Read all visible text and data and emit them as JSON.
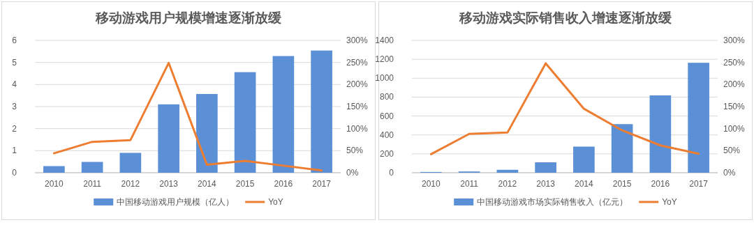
{
  "chart_data": [
    {
      "type": "bar",
      "title": "移动游戏用户规模增速逐渐放缓",
      "categories": [
        "2010",
        "2011",
        "2012",
        "2013",
        "2014",
        "2015",
        "2016",
        "2017"
      ],
      "series": [
        {
          "name": "中国移动游戏用户规模（亿人）",
          "color": "#5b8fd6",
          "values": [
            0.3,
            0.49,
            0.9,
            3.1,
            3.57,
            4.56,
            5.29,
            5.54
          ]
        },
        {
          "name": "YoY",
          "type": "line",
          "axis": "y2",
          "color": "#ed7d31",
          "values": [
            44,
            70,
            74,
            249,
            18,
            27,
            16,
            5
          ]
        }
      ],
      "ylim": [
        0,
        6
      ],
      "yticks": [
        0,
        1,
        2,
        3,
        4,
        5,
        6
      ],
      "y2lim": [
        0,
        300
      ],
      "y2ticks": [
        {
          "value": 0,
          "label": "0%"
        },
        {
          "value": 50,
          "label": "50%"
        },
        {
          "value": 100,
          "label": "100%"
        },
        {
          "value": 150,
          "label": "150%"
        },
        {
          "value": 200,
          "label": "200%"
        },
        {
          "value": 250,
          "label": "250%"
        },
        {
          "value": 300,
          "label": "300%"
        }
      ],
      "grid": "y",
      "legend": "bottom"
    },
    {
      "type": "bar",
      "title": "移动游戏实际销售收入增速逐渐放缓",
      "categories": [
        "2010",
        "2011",
        "2012",
        "2013",
        "2014",
        "2015",
        "2016",
        "2017"
      ],
      "series": [
        {
          "name": "中国移动游戏市场实际销售收入（亿元）",
          "color": "#5b8fd6",
          "values": [
            8,
            13,
            31,
            110,
            276,
            514,
            818,
            1163
          ]
        },
        {
          "name": "YoY",
          "type": "line",
          "axis": "y2",
          "color": "#ed7d31",
          "values": [
            42,
            88,
            91,
            248,
            145,
            96,
            62,
            43
          ]
        }
      ],
      "ylim": [
        0,
        1400
      ],
      "yticks": [
        0,
        200,
        400,
        600,
        800,
        1000,
        1200,
        1400
      ],
      "y2lim": [
        0,
        300
      ],
      "y2ticks": [
        {
          "value": 0,
          "label": "0%"
        },
        {
          "value": 50,
          "label": "50%"
        },
        {
          "value": 100,
          "label": "100%"
        },
        {
          "value": 150,
          "label": "150%"
        },
        {
          "value": 200,
          "label": "200%"
        },
        {
          "value": 250,
          "label": "250%"
        },
        {
          "value": 300,
          "label": "300%"
        }
      ],
      "grid": "y",
      "legend": "bottom"
    }
  ]
}
